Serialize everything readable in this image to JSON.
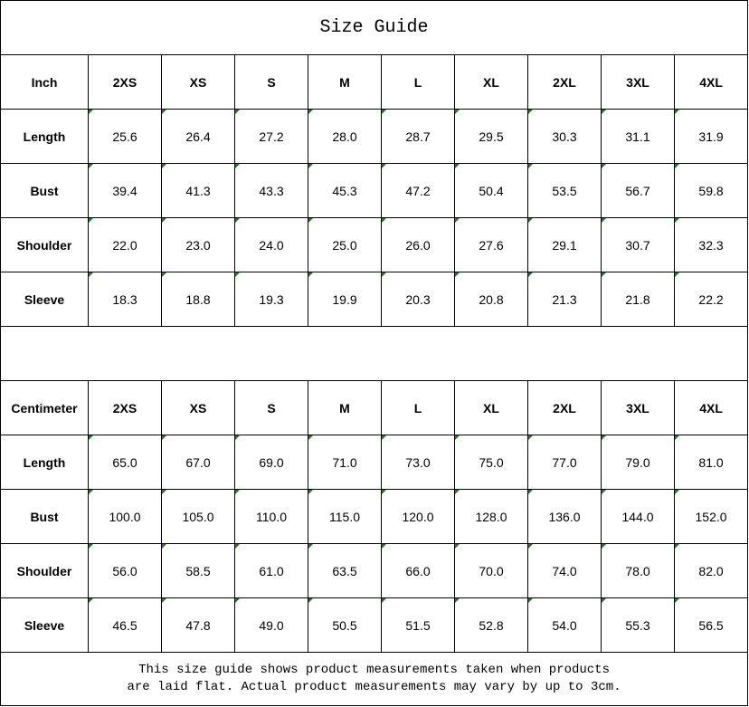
{
  "title": "Size Guide",
  "sizes": [
    "2XS",
    "XS",
    "S",
    "M",
    "L",
    "XL",
    "2XL",
    "3XL",
    "4XL"
  ],
  "inch": {
    "unit_label": "Inch",
    "rows": [
      {
        "label": "Length",
        "values": [
          "25.6",
          "26.4",
          "27.2",
          "28.0",
          "28.7",
          "29.5",
          "30.3",
          "31.1",
          "31.9"
        ]
      },
      {
        "label": "Bust",
        "values": [
          "39.4",
          "41.3",
          "43.3",
          "45.3",
          "47.2",
          "50.4",
          "53.5",
          "56.7",
          "59.8"
        ]
      },
      {
        "label": "Shoulder",
        "values": [
          "22.0",
          "23.0",
          "24.0",
          "25.0",
          "26.0",
          "27.6",
          "29.1",
          "30.7",
          "32.3"
        ]
      },
      {
        "label": "Sleeve",
        "values": [
          "18.3",
          "18.8",
          "19.3",
          "19.9",
          "20.3",
          "20.8",
          "21.3",
          "21.8",
          "22.2"
        ]
      }
    ]
  },
  "cm": {
    "unit_label": "Centimeter",
    "rows": [
      {
        "label": "Length",
        "values": [
          "65.0",
          "67.0",
          "69.0",
          "71.0",
          "73.0",
          "75.0",
          "77.0",
          "79.0",
          "81.0"
        ]
      },
      {
        "label": "Bust",
        "values": [
          "100.0",
          "105.0",
          "110.0",
          "115.0",
          "120.0",
          "128.0",
          "136.0",
          "144.0",
          "152.0"
        ]
      },
      {
        "label": "Shoulder",
        "values": [
          "56.0",
          "58.5",
          "61.0",
          "63.5",
          "66.0",
          "70.0",
          "74.0",
          "78.0",
          "82.0"
        ]
      },
      {
        "label": "Sleeve",
        "values": [
          "46.5",
          "47.8",
          "49.0",
          "50.5",
          "51.5",
          "52.8",
          "54.0",
          "55.3",
          "56.5"
        ]
      }
    ]
  },
  "footer": {
    "line1": "This size guide shows product measurements taken when products",
    "line2": "are laid flat. Actual product measurements may vary by up to 3cm."
  },
  "colors": {
    "cell_marker": "#1a7a1a",
    "border": "#000000"
  }
}
